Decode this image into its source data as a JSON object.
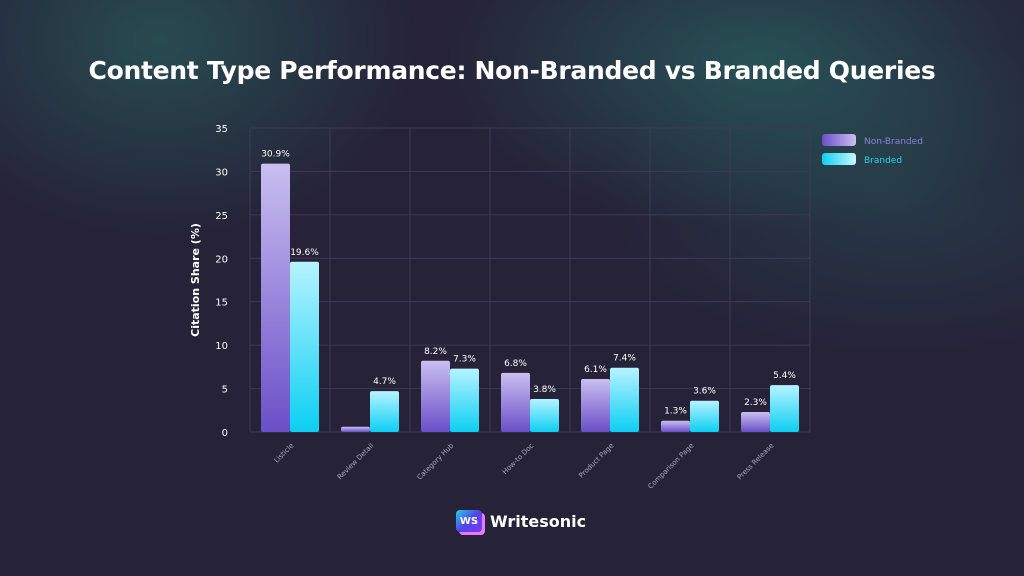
{
  "title": "Content Type Performance: Non-Branded vs Branded Queries",
  "brand": {
    "name": "Writesonic",
    "mark": "WS"
  },
  "colors": {
    "non_branded": "#7b5fd0",
    "branded": "#22d3ee",
    "background": "#262238"
  },
  "chart_data": {
    "type": "bar",
    "title": "Content Type Performance: Non-Branded vs Branded Queries",
    "xlabel": "",
    "ylabel": "Citation Share (%)",
    "ylim": [
      0,
      35
    ],
    "yticks": [
      0,
      5,
      10,
      15,
      20,
      25,
      30,
      35
    ],
    "grid": true,
    "legend": "top-right",
    "categories": [
      "Listicle",
      "Review Detail",
      "Category Hub",
      "How-to Doc",
      "Product Page",
      "Comparison Page",
      "Press Release"
    ],
    "series": [
      {
        "name": "Non-Branded",
        "values": [
          30.9,
          0.6,
          8.2,
          6.8,
          6.1,
          1.3,
          2.3
        ],
        "labels": [
          "30.9%",
          "",
          "8.2%",
          "6.8%",
          "6.1%",
          "1.3%",
          "2.3%"
        ]
      },
      {
        "name": "Branded",
        "values": [
          19.6,
          4.7,
          7.3,
          3.8,
          7.4,
          3.6,
          5.4
        ],
        "labels": [
          "19.6%",
          "4.7%",
          "7.3%",
          "3.8%",
          "7.4%",
          "3.6%",
          "5.4%"
        ]
      }
    ]
  }
}
